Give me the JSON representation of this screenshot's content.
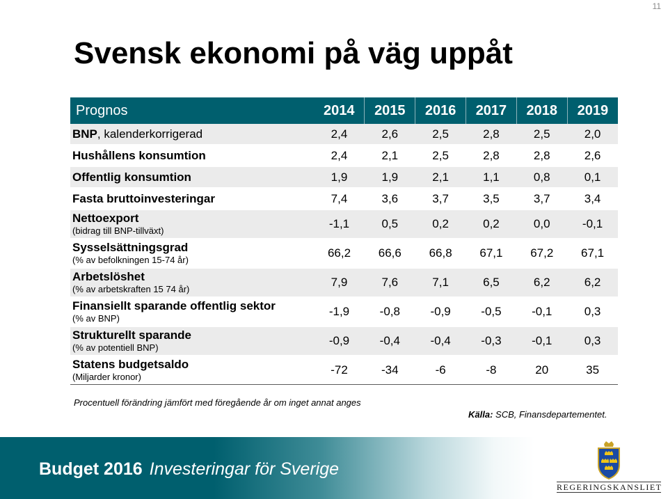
{
  "page_number": "11",
  "title": "Svensk ekonomi på väg uppåt",
  "table": {
    "header_label": "Prognos",
    "years": [
      "2014",
      "2015",
      "2016",
      "2017",
      "2018",
      "2019"
    ],
    "rows": [
      {
        "label": "BNP",
        "label_rest": ", kalenderkorrigerad",
        "sub": "",
        "values": [
          "2,4",
          "2,6",
          "2,5",
          "2,8",
          "2,5",
          "2,0"
        ]
      },
      {
        "label": "Hushållens konsumtion",
        "label_rest": "",
        "sub": "",
        "values": [
          "2,4",
          "2,1",
          "2,5",
          "2,8",
          "2,8",
          "2,6"
        ]
      },
      {
        "label": "Offentlig konsumtion",
        "label_rest": "",
        "sub": "",
        "values": [
          "1,9",
          "1,9",
          "2,1",
          "1,1",
          "0,8",
          "0,1"
        ]
      },
      {
        "label": "Fasta bruttoinvesteringar",
        "label_rest": "",
        "sub": "",
        "values": [
          "7,4",
          "3,6",
          "3,7",
          "3,5",
          "3,7",
          "3,4"
        ]
      },
      {
        "label": "Nettoexport",
        "label_rest": "",
        "sub": "(bidrag till BNP-tillväxt)",
        "values": [
          "-1,1",
          "0,5",
          "0,2",
          "0,2",
          "0,0",
          "-0,1"
        ]
      },
      {
        "label": "Sysselsättningsgrad",
        "label_rest": "",
        "sub": "(% av befolkningen 15-74 år)",
        "values": [
          "66,2",
          "66,6",
          "66,8",
          "67,1",
          "67,2",
          "67,1"
        ]
      },
      {
        "label": "Arbetslöshet",
        "label_rest": "",
        "sub": "(% av arbetskraften 15 74 år)",
        "values": [
          "7,9",
          "7,6",
          "7,1",
          "6,5",
          "6,2",
          "6,2"
        ]
      },
      {
        "label": "Finansiellt sparande offentlig sektor",
        "label_rest": "",
        "sub": "(% av BNP)",
        "values": [
          "-1,9",
          "-0,8",
          "-0,9",
          "-0,5",
          "-0,1",
          "0,3"
        ]
      },
      {
        "label": "Strukturellt sparande",
        "label_rest": "",
        "sub": "(% av potentiell  BNP)",
        "values": [
          "-0,9",
          "-0,4",
          "-0,4",
          "-0,3",
          "-0,1",
          "0,3"
        ]
      },
      {
        "label": "Statens budgetsaldo",
        "label_rest": "",
        "sub": "(Miljarder kronor)",
        "values": [
          "-72",
          "-34",
          "-6",
          "-8",
          "20",
          "35"
        ]
      }
    ]
  },
  "footnote": "Procentuell förändring jämfört med föregående år om inget annat anges",
  "source": {
    "label": "Källa:",
    "text": " SCB, Finansdepartementet."
  },
  "footer": {
    "bold": "Budget 2016",
    "italic": "Investeringar för Sverige"
  },
  "logo": {
    "text": "REGERINGSKANSLIET",
    "icon": "three-crowns-crest-icon"
  },
  "colors": {
    "header_bg": "#005f6e",
    "row_shade": "#ebebeb"
  }
}
